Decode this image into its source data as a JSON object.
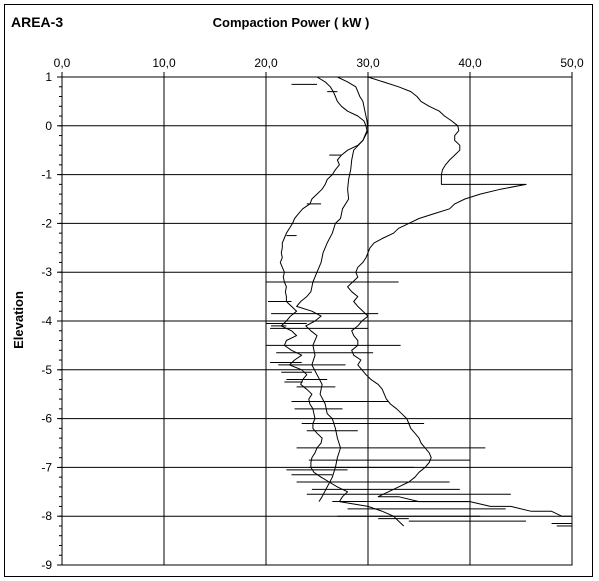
{
  "chart_data": {
    "type": "line",
    "label": "AREA-3",
    "title": "Compaction Power  ( kW )",
    "xlabel": "",
    "ylabel": "Elevation",
    "x_axis_position": "top",
    "xlim": [
      0,
      50
    ],
    "ylim": [
      -9,
      1
    ],
    "x_ticks": [
      "0,0",
      "10,0",
      "20,0",
      "30,0",
      "40,0",
      "50,0"
    ],
    "y_ticks": [
      "1",
      "0",
      "-1",
      "-2",
      "-3",
      "-4",
      "-5",
      "-6",
      "-7",
      "-8",
      "-9"
    ],
    "grid": true,
    "series": [
      {
        "points": [
          [
            25.0,
            1.0
          ],
          [
            25.8,
            0.9
          ],
          [
            26.3,
            0.8
          ],
          [
            26.6,
            0.7
          ],
          [
            26.8,
            0.6
          ],
          [
            27.0,
            0.5
          ],
          [
            27.4,
            0.4
          ],
          [
            28.0,
            0.3
          ],
          [
            29.0,
            0.2
          ],
          [
            29.6,
            0.1
          ],
          [
            29.8,
            0.0
          ],
          [
            29.9,
            -0.1
          ],
          [
            29.7,
            -0.2
          ],
          [
            29.5,
            -0.3
          ],
          [
            29.0,
            -0.4
          ],
          [
            28.0,
            -0.5
          ],
          [
            27.4,
            -0.6
          ],
          [
            27.0,
            -0.7
          ],
          [
            27.2,
            -0.8
          ],
          [
            26.8,
            -0.9
          ],
          [
            26.5,
            -1.0
          ],
          [
            26.0,
            -1.1
          ],
          [
            25.8,
            -1.2
          ],
          [
            25.5,
            -1.3
          ],
          [
            25.0,
            -1.4
          ],
          [
            24.5,
            -1.5
          ],
          [
            24.3,
            -1.6
          ],
          [
            23.6,
            -1.7
          ],
          [
            23.2,
            -1.8
          ],
          [
            22.8,
            -1.9
          ],
          [
            22.6,
            -2.0
          ],
          [
            22.3,
            -2.1
          ],
          [
            22.0,
            -2.2
          ],
          [
            21.8,
            -2.3
          ],
          [
            21.6,
            -2.4
          ],
          [
            21.6,
            -2.5
          ],
          [
            21.5,
            -2.6
          ],
          [
            21.6,
            -2.7
          ],
          [
            21.4,
            -2.8
          ],
          [
            21.6,
            -2.9
          ],
          [
            21.8,
            -3.0
          ],
          [
            21.7,
            -3.1
          ],
          [
            21.8,
            -3.2
          ],
          [
            22.0,
            -3.3
          ],
          [
            21.9,
            -3.4
          ],
          [
            22.0,
            -3.5
          ],
          [
            22.0,
            -3.6
          ],
          [
            22.5,
            -3.7
          ],
          [
            23.0,
            -3.8
          ],
          [
            22.4,
            -3.9
          ],
          [
            22.0,
            -4.0
          ],
          [
            21.5,
            -4.1
          ],
          [
            22.5,
            -4.2
          ],
          [
            23.0,
            -4.3
          ],
          [
            22.0,
            -4.4
          ],
          [
            21.8,
            -4.5
          ],
          [
            22.5,
            -4.6
          ],
          [
            23.5,
            -4.7
          ],
          [
            22.8,
            -4.8
          ],
          [
            22.3,
            -4.9
          ],
          [
            23.5,
            -5.0
          ],
          [
            24.0,
            -5.1
          ],
          [
            23.6,
            -5.2
          ],
          [
            23.4,
            -5.3
          ],
          [
            24.0,
            -5.4
          ],
          [
            24.5,
            -5.5
          ],
          [
            24.2,
            -5.6
          ],
          [
            24.3,
            -5.7
          ],
          [
            24.6,
            -5.8
          ],
          [
            24.7,
            -5.9
          ],
          [
            24.8,
            -6.0
          ],
          [
            24.6,
            -6.1
          ],
          [
            24.6,
            -6.2
          ],
          [
            25.0,
            -6.3
          ],
          [
            25.5,
            -6.4
          ],
          [
            25.4,
            -6.5
          ],
          [
            25.0,
            -6.6
          ],
          [
            24.8,
            -6.7
          ],
          [
            24.5,
            -6.8
          ],
          [
            24.4,
            -6.9
          ],
          [
            24.4,
            -7.0
          ],
          [
            24.7,
            -7.1
          ],
          [
            25.4,
            -7.2
          ],
          [
            26.2,
            -7.3
          ],
          [
            27.0,
            -7.4
          ],
          [
            28.0,
            -7.5
          ],
          [
            27.5,
            -7.6
          ],
          [
            27.2,
            -7.7
          ],
          [
            30.0,
            -7.8
          ],
          [
            31.4,
            -7.9
          ],
          [
            32.5,
            -8.0
          ],
          [
            33.0,
            -8.1
          ],
          [
            33.5,
            -8.2
          ]
        ]
      },
      {
        "points": [
          [
            27.0,
            1.0
          ],
          [
            28.0,
            0.9
          ],
          [
            28.8,
            0.8
          ],
          [
            29.0,
            0.7
          ],
          [
            29.2,
            0.6
          ],
          [
            29.5,
            0.5
          ],
          [
            29.7,
            0.3
          ],
          [
            29.9,
            0.1
          ],
          [
            30.0,
            -0.1
          ],
          [
            29.5,
            -0.3
          ],
          [
            28.6,
            -0.5
          ],
          [
            28.4,
            -0.7
          ],
          [
            28.3,
            -0.9
          ],
          [
            28.1,
            -1.1
          ],
          [
            28.0,
            -1.3
          ],
          [
            28.1,
            -1.5
          ],
          [
            27.5,
            -1.7
          ],
          [
            27.3,
            -1.9
          ],
          [
            26.8,
            -2.0
          ],
          [
            26.5,
            -2.2
          ],
          [
            26.0,
            -2.4
          ],
          [
            25.6,
            -2.6
          ],
          [
            25.4,
            -2.8
          ],
          [
            25.0,
            -3.0
          ],
          [
            24.6,
            -3.2
          ],
          [
            24.4,
            -3.4
          ],
          [
            24.0,
            -3.5
          ],
          [
            23.4,
            -3.6
          ],
          [
            23.0,
            -3.7
          ],
          [
            24.5,
            -3.8
          ],
          [
            25.4,
            -3.9
          ],
          [
            24.8,
            -4.0
          ],
          [
            23.9,
            -4.1
          ],
          [
            24.4,
            -4.2
          ],
          [
            25.0,
            -4.3
          ],
          [
            24.6,
            -4.5
          ],
          [
            24.8,
            -4.7
          ],
          [
            24.5,
            -4.9
          ],
          [
            25.0,
            -5.1
          ],
          [
            25.5,
            -5.3
          ],
          [
            25.3,
            -5.5
          ],
          [
            25.8,
            -5.7
          ],
          [
            26.0,
            -5.9
          ],
          [
            26.5,
            -6.0
          ],
          [
            26.8,
            -6.2
          ],
          [
            27.0,
            -6.4
          ],
          [
            27.3,
            -6.6
          ],
          [
            27.0,
            -6.8
          ],
          [
            26.8,
            -7.0
          ],
          [
            26.5,
            -7.2
          ],
          [
            26.0,
            -7.4
          ],
          [
            25.5,
            -7.6
          ],
          [
            25.2,
            -7.7
          ]
        ]
      },
      {
        "points": [
          [
            30.0,
            1.0
          ],
          [
            31.5,
            0.9
          ],
          [
            33.0,
            0.8
          ],
          [
            34.2,
            0.7
          ],
          [
            34.8,
            0.6
          ],
          [
            35.2,
            0.5
          ],
          [
            36.0,
            0.4
          ],
          [
            37.0,
            0.3
          ],
          [
            37.5,
            0.2
          ],
          [
            38.2,
            0.1
          ],
          [
            38.8,
            0.0
          ],
          [
            38.9,
            -0.1
          ],
          [
            38.5,
            -0.2
          ],
          [
            38.5,
            -0.3
          ],
          [
            39.0,
            -0.4
          ],
          [
            39.0,
            -0.5
          ],
          [
            38.5,
            -0.6
          ],
          [
            38.0,
            -0.7
          ],
          [
            37.6,
            -0.8
          ],
          [
            37.3,
            -0.9
          ],
          [
            37.2,
            -1.0
          ],
          [
            37.2,
            -1.1
          ],
          [
            37.2,
            -1.2
          ],
          [
            39.0,
            -1.2
          ],
          [
            41.5,
            -1.2
          ],
          [
            45.5,
            -1.2
          ],
          [
            43.0,
            -1.3
          ],
          [
            41.0,
            -1.4
          ],
          [
            39.5,
            -1.5
          ],
          [
            38.5,
            -1.6
          ],
          [
            38.0,
            -1.7
          ],
          [
            36.5,
            -1.8
          ],
          [
            35.0,
            -1.9
          ],
          [
            34.0,
            -2.0
          ],
          [
            33.0,
            -2.1
          ],
          [
            32.5,
            -2.2
          ],
          [
            31.5,
            -2.3
          ],
          [
            30.6,
            -2.4
          ],
          [
            30.2,
            -2.5
          ],
          [
            30.0,
            -2.6
          ],
          [
            29.8,
            -2.7
          ],
          [
            29.5,
            -2.8
          ],
          [
            29.0,
            -2.9
          ],
          [
            28.8,
            -3.0
          ],
          [
            29.0,
            -3.1
          ],
          [
            28.5,
            -3.2
          ],
          [
            28.0,
            -3.3
          ],
          [
            28.4,
            -3.4
          ],
          [
            29.0,
            -3.5
          ],
          [
            28.6,
            -3.6
          ],
          [
            29.0,
            -3.7
          ],
          [
            29.5,
            -3.8
          ],
          [
            30.0,
            -3.9
          ],
          [
            29.4,
            -4.0
          ],
          [
            29.0,
            -4.1
          ],
          [
            28.4,
            -4.2
          ],
          [
            28.6,
            -4.3
          ],
          [
            29.0,
            -4.4
          ],
          [
            29.0,
            -4.5
          ],
          [
            28.4,
            -4.6
          ],
          [
            28.6,
            -4.7
          ],
          [
            29.3,
            -4.8
          ],
          [
            29.0,
            -4.9
          ],
          [
            29.4,
            -5.0
          ],
          [
            29.8,
            -5.1
          ],
          [
            30.3,
            -5.2
          ],
          [
            31.0,
            -5.3
          ],
          [
            31.4,
            -5.4
          ],
          [
            31.6,
            -5.5
          ],
          [
            31.8,
            -5.6
          ],
          [
            32.2,
            -5.7
          ],
          [
            32.8,
            -5.8
          ],
          [
            33.3,
            -5.9
          ],
          [
            33.8,
            -6.0
          ],
          [
            34.0,
            -6.1
          ],
          [
            34.2,
            -6.2
          ],
          [
            34.6,
            -6.3
          ],
          [
            35.0,
            -6.4
          ],
          [
            35.2,
            -6.5
          ],
          [
            35.6,
            -6.6
          ],
          [
            36.0,
            -6.7
          ],
          [
            36.2,
            -6.8
          ],
          [
            36.0,
            -6.9
          ],
          [
            35.6,
            -7.0
          ],
          [
            35.0,
            -7.1
          ],
          [
            34.6,
            -7.2
          ],
          [
            34.0,
            -7.3
          ],
          [
            33.0,
            -7.4
          ],
          [
            32.0,
            -7.5
          ],
          [
            31.0,
            -7.6
          ],
          [
            33.0,
            -7.6
          ],
          [
            35.0,
            -7.7
          ],
          [
            38.0,
            -7.7
          ],
          [
            40.0,
            -7.7
          ],
          [
            42.0,
            -7.8
          ],
          [
            44.0,
            -7.8
          ],
          [
            46.0,
            -7.9
          ],
          [
            48.0,
            -7.9
          ],
          [
            49.0,
            -8.0
          ],
          [
            50.0,
            -8.0
          ]
        ]
      }
    ],
    "spikes": [
      [
        26.0,
        0.7,
        27.0
      ],
      [
        22.5,
        0.85,
        25.0
      ],
      [
        26.2,
        -0.6,
        27.4
      ],
      [
        24.0,
        -1.6,
        25.4
      ],
      [
        22.0,
        -2.25,
        23.0
      ],
      [
        20.0,
        -3.2,
        33.0
      ],
      [
        20.2,
        -3.6,
        22.5
      ],
      [
        20.5,
        -3.85,
        31.0
      ],
      [
        20.0,
        -4.05,
        24.0
      ],
      [
        20.5,
        -4.1,
        22.0
      ],
      [
        20.4,
        -4.15,
        30.0
      ],
      [
        20.0,
        -4.5,
        33.2
      ],
      [
        21.0,
        -4.65,
        30.5
      ],
      [
        20.4,
        -4.85,
        23.5
      ],
      [
        21.2,
        -4.9,
        27.8
      ],
      [
        21.5,
        -5.05,
        24.5
      ],
      [
        22.0,
        -5.2,
        26.0
      ],
      [
        21.8,
        -5.25,
        23.6
      ],
      [
        23.0,
        -5.35,
        26.8
      ],
      [
        22.5,
        -5.65,
        32.0
      ],
      [
        22.8,
        -5.8,
        27.5
      ],
      [
        23.5,
        -6.1,
        35.5
      ],
      [
        24.0,
        -6.25,
        29.0
      ],
      [
        23.0,
        -6.6,
        41.5
      ],
      [
        24.2,
        -6.85,
        40.0
      ],
      [
        24.2,
        -7.0,
        34.5
      ],
      [
        22.0,
        -7.05,
        28.0
      ],
      [
        22.5,
        -7.15,
        26.5
      ],
      [
        23.0,
        -7.3,
        38.0
      ],
      [
        24.5,
        -7.45,
        39.0
      ],
      [
        24.0,
        -7.55,
        44.0
      ],
      [
        26.5,
        -7.7,
        40.0
      ],
      [
        28.0,
        -7.85,
        43.5
      ],
      [
        27.0,
        -8.0,
        41.0
      ],
      [
        31.0,
        -8.05,
        34.0
      ],
      [
        34.0,
        -8.1,
        45.5
      ],
      [
        48.0,
        -8.15,
        50.0
      ],
      [
        48.5,
        -8.2,
        50.0
      ]
    ]
  }
}
